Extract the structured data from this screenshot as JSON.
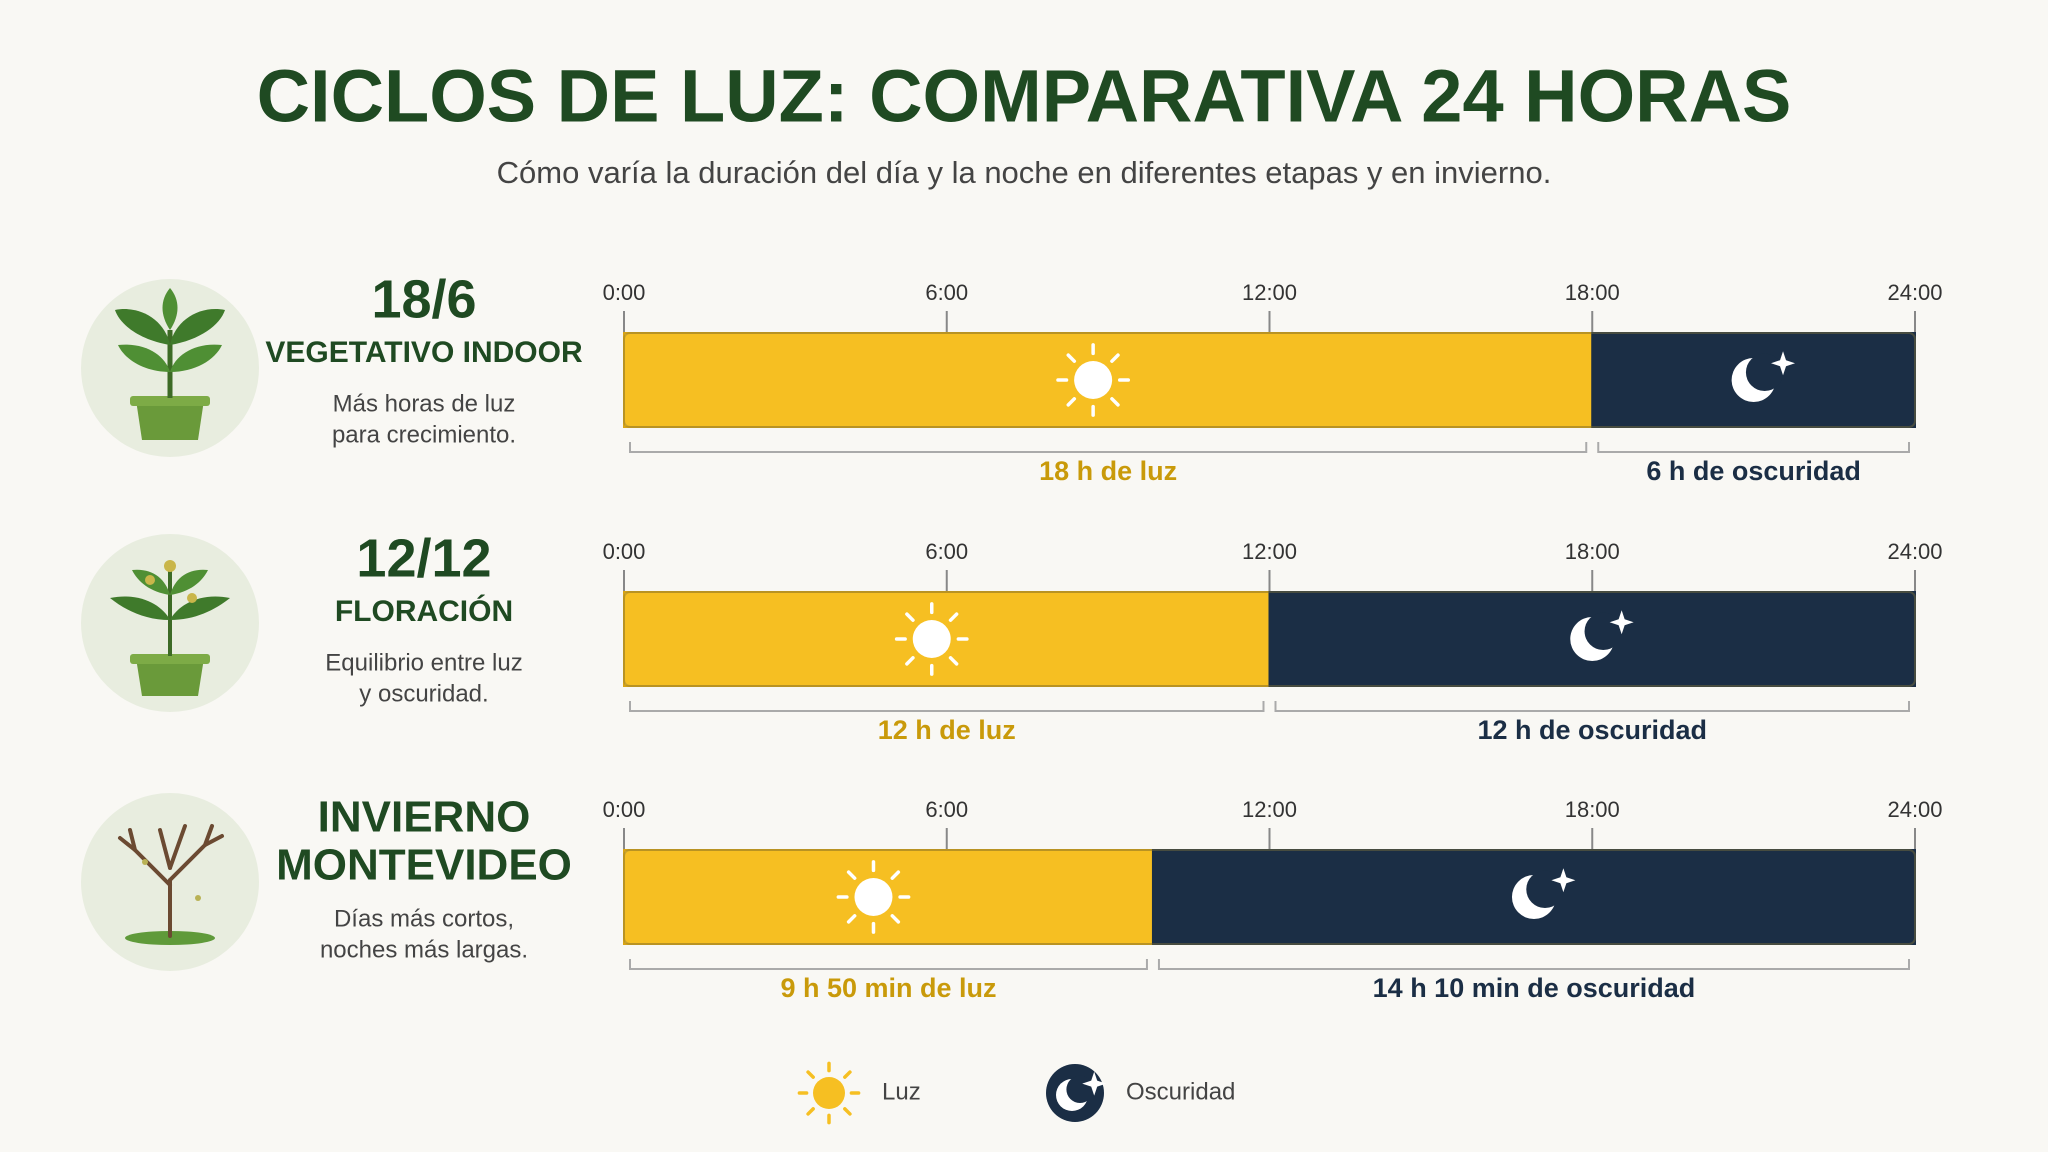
{
  "header": {
    "title": "CICLOS DE LUZ: COMPARATIVA 24 HORAS",
    "subtitle": "Cómo varía la duración del día y la noche en diferentes etapas y en invierno."
  },
  "chart_data": [
    {
      "type": "stacked-bar",
      "title": "18/6",
      "subtitle": "VEGETATIVO INDOOR",
      "description": [
        "Más horas de luz",
        "para crecimiento."
      ],
      "xlim": [
        0,
        24
      ],
      "xticks": [
        {
          "value": 0,
          "label": "0:00"
        },
        {
          "value": 6,
          "label": "6:00"
        },
        {
          "value": 12,
          "label": "12:00"
        },
        {
          "value": 18,
          "label": "18:00"
        },
        {
          "value": 24,
          "label": "24:00"
        }
      ],
      "series": [
        {
          "name": "Luz",
          "color": "#f6bf22",
          "values": [
            18
          ],
          "value_labels": [
            "18 h de luz"
          ]
        },
        {
          "name": "Oscuridad",
          "color": "#1b2e45",
          "values": [
            6
          ],
          "value_labels": [
            "6 h de oscuridad"
          ]
        }
      ]
    },
    {
      "type": "stacked-bar",
      "title": "12/12",
      "subtitle": "FLORACIÓN",
      "description": [
        "Equilibrio entre luz",
        "y oscuridad."
      ],
      "xlim": [
        0,
        24
      ],
      "xticks": [
        {
          "value": 0,
          "label": "0:00"
        },
        {
          "value": 6,
          "label": "6:00"
        },
        {
          "value": 12,
          "label": "12:00"
        },
        {
          "value": 18,
          "label": "18:00"
        },
        {
          "value": 24,
          "label": "24:00"
        }
      ],
      "series": [
        {
          "name": "Luz",
          "color": "#f6bf22",
          "values": [
            12
          ],
          "value_labels": [
            "12 h de luz"
          ]
        },
        {
          "name": "Oscuridad",
          "color": "#1b2e45",
          "values": [
            12
          ],
          "value_labels": [
            "12 h de oscuridad"
          ]
        }
      ]
    },
    {
      "type": "stacked-bar",
      "title": "INVIERNO",
      "subtitle": "MONTEVIDEO",
      "description": [
        "Días más cortos,",
        "noches más largas."
      ],
      "xlim": [
        0,
        24
      ],
      "xticks": [
        {
          "value": 0,
          "label": "0:00"
        },
        {
          "value": 6,
          "label": "6:00"
        },
        {
          "value": 12,
          "label": "12:00"
        },
        {
          "value": 18,
          "label": "18:00"
        },
        {
          "value": 24,
          "label": "24:00"
        }
      ],
      "series": [
        {
          "name": "Luz",
          "color": "#f6bf22",
          "values": [
            9.833333
          ],
          "value_labels": [
            "9 h 50 min de luz"
          ]
        },
        {
          "name": "Oscuridad",
          "color": "#1b2e45",
          "values": [
            14.166667
          ],
          "value_labels": [
            "14 h 10 min de oscuridad"
          ]
        }
      ]
    }
  ]
}
